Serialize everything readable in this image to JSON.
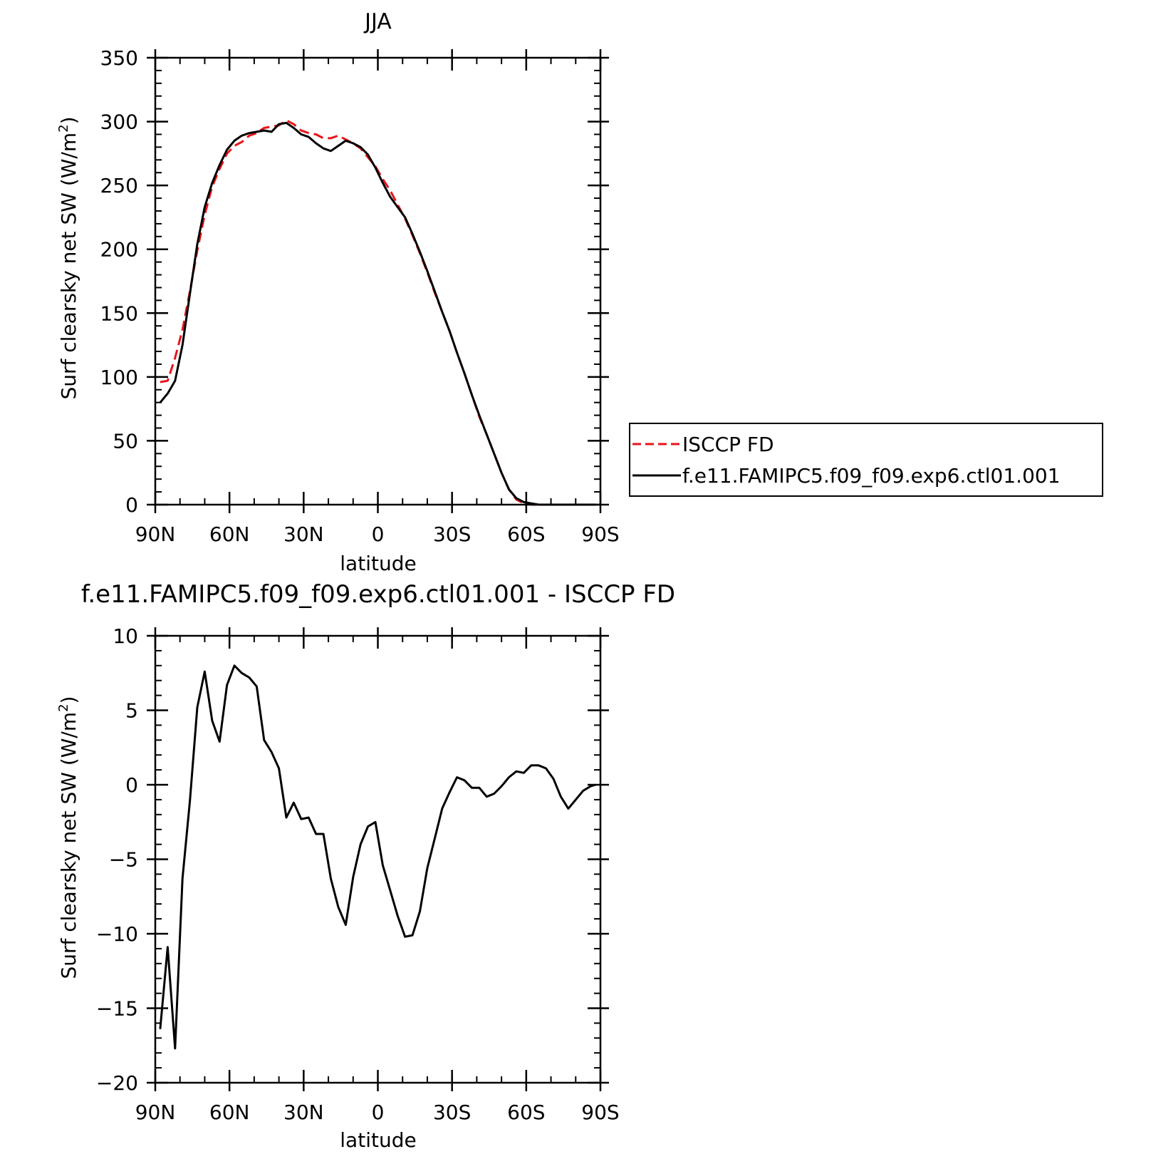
{
  "chart_data": [
    {
      "type": "line",
      "title": "JJA",
      "xlabel": "latitude",
      "ylabel_main": "Surf clearsky net SW (W/m",
      "ylabel_sup": "2",
      "ylabel_tail": ")",
      "xlim": [
        90,
        -90
      ],
      "ylim": [
        0,
        350
      ],
      "x_ticks": [
        {
          "value": 90,
          "label": "90N"
        },
        {
          "value": 60,
          "label": "60N"
        },
        {
          "value": 30,
          "label": "30N"
        },
        {
          "value": 0,
          "label": "0"
        },
        {
          "value": -30,
          "label": "30S"
        },
        {
          "value": -60,
          "label": "60S"
        },
        {
          "value": -90,
          "label": "90S"
        }
      ],
      "y_ticks": [
        {
          "value": 0,
          "label": "0"
        },
        {
          "value": 50,
          "label": "50"
        },
        {
          "value": 100,
          "label": "100"
        },
        {
          "value": 150,
          "label": "150"
        },
        {
          "value": 200,
          "label": "200"
        },
        {
          "value": 250,
          "label": "250"
        },
        {
          "value": 300,
          "label": "300"
        },
        {
          "value": 350,
          "label": "350"
        }
      ],
      "x_minor_step": 10,
      "y_minor_step": 10,
      "legend_position": "right",
      "series": [
        {
          "name": "ISCCP FD",
          "color": "#e8141b",
          "dash": "dashed",
          "x": [
            88,
            85,
            82,
            79,
            76,
            73,
            70,
            67,
            64,
            61,
            58,
            55,
            52,
            49,
            46,
            43,
            40,
            37,
            34,
            31,
            28,
            25,
            22,
            19,
            16,
            13,
            10,
            7,
            4,
            1,
            -2,
            -5,
            -8,
            -11,
            -14,
            -17,
            -20,
            -23,
            -26,
            -29,
            -32,
            -35,
            -38,
            -41,
            -44,
            -47,
            -50,
            -53,
            -56,
            -59,
            -62,
            -65,
            -68,
            -71,
            -74,
            -77,
            -80,
            -83,
            -86,
            -88
          ],
          "y": [
            96,
            97,
            115,
            137,
            167,
            199,
            227,
            249,
            263,
            275,
            281,
            284,
            289,
            291,
            295,
            296,
            297,
            301,
            298,
            293,
            291,
            290,
            287,
            287,
            289,
            286,
            283,
            279,
            272,
            265,
            255,
            246,
            235,
            224,
            211,
            197,
            182,
            166,
            151,
            136,
            119,
            103,
            86,
            69,
            55,
            40,
            25,
            12,
            4,
            1,
            0,
            0,
            0,
            0,
            0,
            0,
            0,
            0,
            0,
            0
          ]
        },
        {
          "name": "f.e11.FAMIPC5.f09_f09.exp6.ctl01.001",
          "color": "#000000",
          "dash": "solid",
          "x": [
            88,
            85,
            82,
            79,
            76,
            73,
            70,
            67,
            64,
            61,
            58,
            55,
            52,
            49,
            46,
            43,
            40,
            37,
            34,
            31,
            28,
            25,
            22,
            19,
            16,
            13,
            10,
            7,
            4,
            1,
            -2,
            -5,
            -8,
            -11,
            -14,
            -17,
            -20,
            -23,
            -26,
            -29,
            -32,
            -35,
            -38,
            -41,
            -44,
            -47,
            -50,
            -53,
            -56,
            -59,
            -62,
            -65,
            -68,
            -71,
            -74,
            -77,
            -80,
            -83,
            -86,
            -88
          ],
          "y": [
            80,
            87,
            97,
            125,
            165,
            204,
            233,
            252,
            266,
            278,
            285,
            289,
            291,
            292,
            293,
            292,
            298,
            299,
            295,
            290,
            288,
            283,
            279,
            277,
            281,
            285,
            283,
            280,
            274,
            264,
            252,
            241,
            233,
            225,
            212,
            198,
            183,
            167,
            151,
            136,
            119,
            103,
            86,
            70,
            55,
            40,
            25,
            12,
            5,
            2,
            1,
            0,
            0,
            0,
            0,
            0,
            0,
            0,
            0,
            0
          ]
        }
      ]
    },
    {
      "type": "line",
      "title": "f.e11.FAMIPC5.f09_f09.exp6.ctl01.001 - ISCCP FD",
      "xlabel": "latitude",
      "ylabel_main": "Surf clearsky net SW (W/m",
      "ylabel_sup": "2",
      "ylabel_tail": ")",
      "xlim": [
        90,
        -90
      ],
      "ylim": [
        -20,
        10
      ],
      "x_ticks": [
        {
          "value": 90,
          "label": "90N"
        },
        {
          "value": 60,
          "label": "60N"
        },
        {
          "value": 30,
          "label": "30N"
        },
        {
          "value": 0,
          "label": "0"
        },
        {
          "value": -30,
          "label": "30S"
        },
        {
          "value": -60,
          "label": "60S"
        },
        {
          "value": -90,
          "label": "90S"
        }
      ],
      "y_ticks": [
        {
          "value": -20,
          "label": "−20"
        },
        {
          "value": -15,
          "label": "−15"
        },
        {
          "value": -10,
          "label": "−10"
        },
        {
          "value": -5,
          "label": "−5"
        },
        {
          "value": 0,
          "label": "0"
        },
        {
          "value": 5,
          "label": "5"
        },
        {
          "value": 10,
          "label": "10"
        }
      ],
      "x_minor_step": 10,
      "y_minor_step": 1,
      "series": [
        {
          "name": "",
          "color": "#000000",
          "dash": "solid",
          "x": [
            88,
            85,
            82,
            79,
            76,
            73,
            70,
            67,
            64,
            61,
            58,
            55,
            52,
            49,
            46,
            43,
            40,
            37,
            34,
            31,
            28,
            25,
            22,
            19,
            16,
            13,
            10,
            7,
            4,
            1,
            -2,
            -5,
            -8,
            -11,
            -14,
            -17,
            -20,
            -23,
            -26,
            -29,
            -32,
            -35,
            -38,
            -41,
            -44,
            -47,
            -50,
            -53,
            -56,
            -59,
            -62,
            -65,
            -68,
            -71,
            -74,
            -77,
            -80,
            -83,
            -86,
            -88
          ],
          "y": [
            -16.4,
            -10.9,
            -17.7,
            -6.3,
            -1.1,
            5.2,
            7.6,
            4.3,
            2.9,
            6.7,
            8.0,
            7.5,
            7.2,
            6.6,
            3.0,
            2.2,
            1.1,
            -2.2,
            -1.2,
            -2.3,
            -2.2,
            -3.3,
            -3.3,
            -6.3,
            -8.2,
            -9.4,
            -6.2,
            -4.0,
            -2.8,
            -2.5,
            -5.4,
            -7.1,
            -8.8,
            -10.2,
            -10.1,
            -8.5,
            -5.6,
            -3.6,
            -1.6,
            -0.5,
            0.5,
            0.3,
            -0.2,
            -0.2,
            -0.8,
            -0.6,
            -0.1,
            0.5,
            0.9,
            0.8,
            1.3,
            1.3,
            1.1,
            0.4,
            -0.8,
            -1.6,
            -1.0,
            -0.4,
            -0.1,
            0.0
          ]
        }
      ]
    }
  ]
}
